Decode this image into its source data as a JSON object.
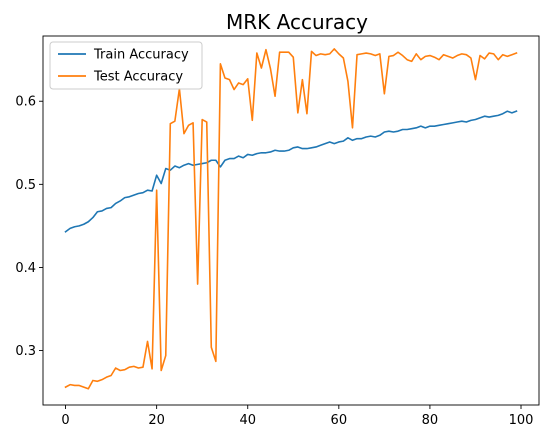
{
  "chart_data": {
    "type": "line",
    "title": "MRK Accuracy",
    "xlabel": "",
    "ylabel": "",
    "xlim": [
      -4.95,
      103.95
    ],
    "ylim": [
      0.2345,
      0.6785
    ],
    "xticks": [
      0,
      20,
      40,
      60,
      80,
      100
    ],
    "yticks": [
      0.3,
      0.4,
      0.5,
      0.6
    ],
    "grid": false,
    "legend": {
      "placement": "top-left"
    },
    "series": [
      {
        "name": "Train Accuracy",
        "color": "#1f77b4",
        "x": [
          0,
          1,
          2,
          3,
          4,
          5,
          6,
          7,
          8,
          9,
          10,
          11,
          12,
          13,
          14,
          15,
          16,
          17,
          18,
          19,
          20,
          21,
          22,
          23,
          24,
          25,
          26,
          27,
          28,
          29,
          30,
          31,
          32,
          33,
          34,
          35,
          36,
          37,
          38,
          39,
          40,
          41,
          42,
          43,
          44,
          45,
          46,
          47,
          48,
          49,
          50,
          51,
          52,
          53,
          54,
          55,
          56,
          57,
          58,
          59,
          60,
          61,
          62,
          63,
          64,
          65,
          66,
          67,
          68,
          69,
          70,
          71,
          72,
          73,
          74,
          75,
          76,
          77,
          78,
          79,
          80,
          81,
          82,
          83,
          84,
          85,
          86,
          87,
          88,
          89,
          90,
          91,
          92,
          93,
          94,
          95,
          96,
          97,
          98,
          99
        ],
        "values": [
          0.443,
          0.447,
          0.449,
          0.45,
          0.452,
          0.455,
          0.46,
          0.467,
          0.468,
          0.471,
          0.472,
          0.477,
          0.48,
          0.484,
          0.485,
          0.487,
          0.489,
          0.49,
          0.493,
          0.492,
          0.511,
          0.501,
          0.519,
          0.517,
          0.522,
          0.52,
          0.523,
          0.525,
          0.523,
          0.524,
          0.525,
          0.526,
          0.529,
          0.529,
          0.521,
          0.529,
          0.531,
          0.531,
          0.534,
          0.532,
          0.536,
          0.535,
          0.537,
          0.538,
          0.538,
          0.539,
          0.541,
          0.54,
          0.54,
          0.541,
          0.544,
          0.545,
          0.543,
          0.543,
          0.544,
          0.545,
          0.547,
          0.549,
          0.551,
          0.549,
          0.551,
          0.552,
          0.556,
          0.553,
          0.555,
          0.555,
          0.557,
          0.558,
          0.557,
          0.559,
          0.563,
          0.564,
          0.563,
          0.564,
          0.566,
          0.566,
          0.567,
          0.568,
          0.57,
          0.568,
          0.57,
          0.57,
          0.571,
          0.572,
          0.573,
          0.574,
          0.575,
          0.576,
          0.575,
          0.577,
          0.578,
          0.58,
          0.582,
          0.581,
          0.582,
          0.583,
          0.585,
          0.588,
          0.586,
          0.588
        ]
      },
      {
        "name": "Test Accuracy",
        "color": "#ff7f0e",
        "x": [
          0,
          1,
          2,
          3,
          4,
          5,
          6,
          7,
          8,
          9,
          10,
          11,
          12,
          13,
          14,
          15,
          16,
          17,
          18,
          19,
          20,
          21,
          22,
          23,
          24,
          25,
          26,
          27,
          28,
          29,
          30,
          31,
          32,
          33,
          34,
          35,
          36,
          37,
          38,
          39,
          40,
          41,
          42,
          43,
          44,
          45,
          46,
          47,
          48,
          49,
          50,
          51,
          52,
          53,
          54,
          55,
          56,
          57,
          58,
          59,
          60,
          61,
          62,
          63,
          64,
          65,
          66,
          67,
          68,
          69,
          70,
          71,
          72,
          73,
          74,
          75,
          76,
          77,
          78,
          79,
          80,
          81,
          82,
          83,
          84,
          85,
          86,
          87,
          88,
          89,
          90,
          91,
          92,
          93,
          94,
          95,
          96,
          97,
          98,
          99
        ],
        "values": [
          0.256,
          0.259,
          0.258,
          0.258,
          0.256,
          0.254,
          0.264,
          0.263,
          0.265,
          0.268,
          0.27,
          0.279,
          0.276,
          0.277,
          0.28,
          0.281,
          0.279,
          0.28,
          0.311,
          0.278,
          0.493,
          0.276,
          0.294,
          0.573,
          0.576,
          0.615,
          0.561,
          0.571,
          0.574,
          0.38,
          0.578,
          0.575,
          0.304,
          0.287,
          0.645,
          0.628,
          0.626,
          0.614,
          0.622,
          0.62,
          0.627,
          0.577,
          0.658,
          0.64,
          0.662,
          0.639,
          0.606,
          0.659,
          0.659,
          0.659,
          0.653,
          0.586,
          0.626,
          0.585,
          0.66,
          0.655,
          0.657,
          0.656,
          0.657,
          0.663,
          0.657,
          0.652,
          0.624,
          0.568,
          0.656,
          0.657,
          0.658,
          0.657,
          0.655,
          0.657,
          0.609,
          0.654,
          0.655,
          0.659,
          0.655,
          0.65,
          0.648,
          0.657,
          0.65,
          0.654,
          0.655,
          0.653,
          0.65,
          0.656,
          0.654,
          0.652,
          0.655,
          0.657,
          0.656,
          0.652,
          0.626,
          0.655,
          0.651,
          0.658,
          0.657,
          0.65,
          0.656,
          0.654,
          0.656,
          0.658
        ]
      }
    ]
  }
}
